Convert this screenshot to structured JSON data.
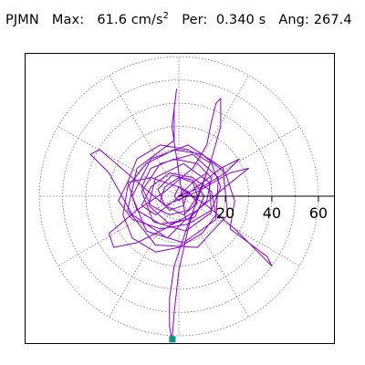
{
  "chart_data": {
    "type": "polar-orbit",
    "station": "PJMN",
    "max_label": "Max:",
    "max_value": "61.6",
    "max_unit": "cm/s",
    "max_unit_exp": "2",
    "period_label": "Per:",
    "period_value": "0.340 s",
    "angle_label": "Ang:",
    "angle_value": "267.4",
    "radial_ticks": [
      "20",
      "40",
      "60"
    ],
    "radial_tick_values": [
      20,
      40,
      60
    ],
    "radial_max": 61.6,
    "grid_rings": [
      10,
      20,
      30,
      40,
      50,
      60
    ],
    "grid_spokes_deg": [
      0,
      30,
      60,
      90,
      120,
      150,
      180,
      210,
      240,
      270,
      300,
      330
    ],
    "peak_marker": {
      "angle_deg": 267.4,
      "value": 61.6
    },
    "colors": {
      "trace": "#8a00d4",
      "marker": "#009a80",
      "grid": "#777777",
      "axis": "#000000"
    },
    "trace_points": [
      [
        0,
        0
      ],
      [
        4,
        2
      ],
      [
        8,
        -3
      ],
      [
        2,
        -8
      ],
      [
        -6,
        -4
      ],
      [
        -9,
        3
      ],
      [
        -3,
        9
      ],
      [
        6,
        7
      ],
      [
        11,
        0
      ],
      [
        7,
        -9
      ],
      [
        -4,
        -12
      ],
      [
        -13,
        -4
      ],
      [
        -10,
        8
      ],
      [
        2,
        14
      ],
      [
        13,
        6
      ],
      [
        14,
        -7
      ],
      [
        3,
        -15
      ],
      [
        -11,
        -11
      ],
      [
        -16,
        2
      ],
      [
        -8,
        14
      ],
      [
        6,
        18
      ],
      [
        17,
        8
      ],
      [
        16,
        -10
      ],
      [
        2,
        -20
      ],
      [
        -14,
        -15
      ],
      [
        -20,
        0
      ],
      [
        -12,
        16
      ],
      [
        4,
        22
      ],
      [
        19,
        12
      ],
      [
        21,
        -8
      ],
      [
        8,
        -22
      ],
      [
        -10,
        -21
      ],
      [
        -22,
        -6
      ],
      [
        -18,
        12
      ],
      [
        -2,
        24
      ],
      [
        -2,
        38
      ],
      [
        -1,
        46
      ],
      [
        -3,
        30
      ],
      [
        0,
        10
      ],
      [
        3,
        -10
      ],
      [
        -5,
        -18
      ],
      [
        -20,
        -8
      ],
      [
        -30,
        10
      ],
      [
        -38,
        18
      ],
      [
        -34,
        20
      ],
      [
        -20,
        8
      ],
      [
        -6,
        -4
      ],
      [
        8,
        2
      ],
      [
        22,
        10
      ],
      [
        30,
        12
      ],
      [
        20,
        4
      ],
      [
        8,
        -6
      ],
      [
        -6,
        -14
      ],
      [
        -18,
        -20
      ],
      [
        -28,
        -22
      ],
      [
        -30,
        -16
      ],
      [
        -18,
        -6
      ],
      [
        -6,
        2
      ],
      [
        6,
        12
      ],
      [
        12,
        22
      ],
      [
        14,
        32
      ],
      [
        16,
        40
      ],
      [
        18,
        42
      ],
      [
        18,
        30
      ],
      [
        14,
        16
      ],
      [
        10,
        4
      ],
      [
        4,
        -12
      ],
      [
        -2,
        -30
      ],
      [
        -4,
        -44
      ],
      [
        -4,
        -56
      ],
      [
        -3,
        -62
      ],
      [
        -2,
        -50
      ],
      [
        0,
        -32
      ],
      [
        4,
        -14
      ],
      [
        8,
        0
      ],
      [
        12,
        10
      ],
      [
        6,
        6
      ],
      [
        -2,
        -2
      ],
      [
        -10,
        -8
      ],
      [
        -16,
        -4
      ],
      [
        -12,
        4
      ],
      [
        -4,
        10
      ],
      [
        6,
        8
      ],
      [
        14,
        2
      ],
      [
        16,
        -8
      ],
      [
        10,
        -16
      ],
      [
        0,
        -22
      ],
      [
        -10,
        -24
      ],
      [
        -20,
        -18
      ],
      [
        -24,
        -8
      ],
      [
        -22,
        4
      ],
      [
        -14,
        14
      ],
      [
        -2,
        20
      ],
      [
        10,
        18
      ],
      [
        20,
        10
      ],
      [
        24,
        -2
      ],
      [
        22,
        -14
      ],
      [
        30,
        -20
      ],
      [
        38,
        -26
      ],
      [
        40,
        -30
      ],
      [
        34,
        -24
      ],
      [
        24,
        -14
      ],
      [
        12,
        -4
      ],
      [
        0,
        4
      ],
      [
        -12,
        8
      ],
      [
        -22,
        6
      ],
      [
        -26,
        -2
      ],
      [
        -20,
        -10
      ],
      [
        -8,
        -14
      ],
      [
        4,
        -12
      ],
      [
        14,
        -6
      ],
      [
        18,
        4
      ],
      [
        14,
        14
      ],
      [
        4,
        20
      ],
      [
        -8,
        22
      ],
      [
        -18,
        16
      ],
      [
        -22,
        6
      ],
      [
        -18,
        -6
      ],
      [
        -8,
        -12
      ],
      [
        4,
        -10
      ],
      [
        12,
        -2
      ],
      [
        14,
        8
      ],
      [
        8,
        14
      ],
      [
        -2,
        16
      ],
      [
        -12,
        12
      ],
      [
        -16,
        4
      ],
      [
        -12,
        -4
      ],
      [
        -4,
        -8
      ],
      [
        4,
        -6
      ],
      [
        8,
        0
      ],
      [
        6,
        6
      ],
      [
        0,
        8
      ],
      [
        -6,
        4
      ],
      [
        -8,
        -2
      ],
      [
        -4,
        -6
      ],
      [
        2,
        -4
      ],
      [
        4,
        2
      ],
      [
        0,
        4
      ],
      [
        -2,
        0
      ],
      [
        0,
        -2
      ],
      [
        18,
        12
      ],
      [
        26,
        16
      ],
      [
        20,
        10
      ],
      [
        10,
        4
      ],
      [
        0,
        0
      ]
    ]
  }
}
